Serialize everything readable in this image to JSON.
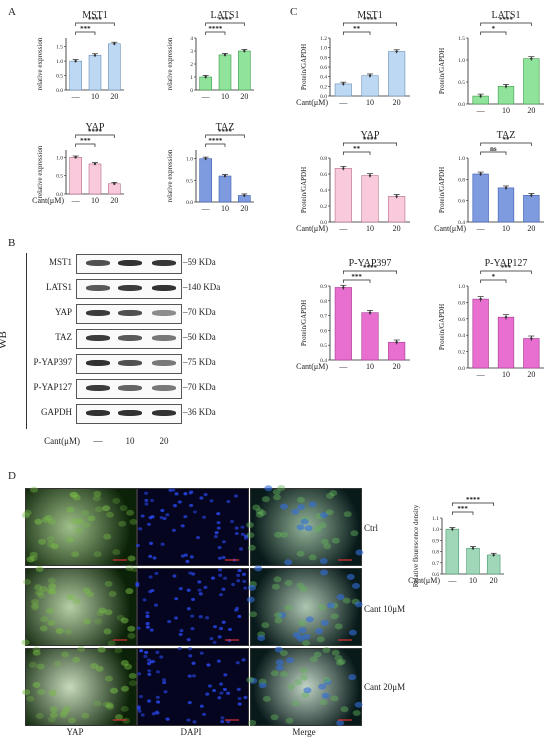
{
  "panel_letters": {
    "a": "A",
    "b": "B",
    "c": "C",
    "d": "D"
  },
  "western_blot": {
    "side_label": "WB",
    "rows": [
      {
        "protein": "MST1",
        "kda": "59 KDa",
        "intensity": [
          0.75,
          0.9,
          0.88
        ]
      },
      {
        "protein": "LATS1",
        "kda": "140 KDa",
        "intensity": [
          0.7,
          0.85,
          0.9
        ]
      },
      {
        "protein": "YAP",
        "kda": "70 KDa",
        "intensity": [
          0.85,
          0.75,
          0.45
        ]
      },
      {
        "protein": "TAZ",
        "kda": "50 KDa",
        "intensity": [
          0.85,
          0.7,
          0.55
        ]
      },
      {
        "protein": "P-YAP397",
        "kda": "75 KDa",
        "intensity": [
          0.9,
          0.75,
          0.55
        ]
      },
      {
        "protein": "P-YAP127",
        "kda": "70 KDa",
        "intensity": [
          0.85,
          0.65,
          0.55
        ]
      },
      {
        "protein": "GAPDH",
        "kda": "36 KDa",
        "intensity": [
          0.9,
          0.9,
          0.9
        ]
      }
    ],
    "treatment_label": "Cant(μM)",
    "lanes": [
      "—",
      "10",
      "20"
    ]
  },
  "microscopy": {
    "columns": [
      "YAP",
      "DAPI",
      "Merge"
    ],
    "rows": [
      "Ctrl",
      "Cant 10μM",
      "Cant 20μM"
    ]
  },
  "chart_data": [
    {
      "panel": "A",
      "type": "bar",
      "title": "MST1",
      "ylabel": "relative expression",
      "categories": [
        "—",
        "10",
        "20"
      ],
      "values": [
        1.0,
        1.2,
        1.6
      ],
      "ylim": [
        0,
        1.8
      ],
      "yticks": [
        "0.0",
        "0.5",
        "1.0",
        "1.5"
      ],
      "color": "#bcd8f3",
      "stroke": "#6b8fb5",
      "sig": [
        {
          "from": 0,
          "to": 1,
          "label": "***"
        },
        {
          "from": 0,
          "to": 2,
          "label": "****"
        }
      ],
      "treatment_label": ""
    },
    {
      "panel": "A",
      "type": "bar",
      "title": "LATS1",
      "ylabel": "relative expression",
      "categories": [
        "—",
        "10",
        "20"
      ],
      "values": [
        1.0,
        2.7,
        3.0
      ],
      "ylim": [
        0,
        4
      ],
      "yticks": [
        "0",
        "1",
        "2",
        "3",
        "4"
      ],
      "color": "#8fe39a",
      "stroke": "#3c9a49",
      "sig": [
        {
          "from": 0,
          "to": 1,
          "label": "****"
        },
        {
          "from": 0,
          "to": 2,
          "label": "****"
        }
      ],
      "treatment_label": ""
    },
    {
      "panel": "A",
      "type": "bar",
      "title": "YAP",
      "ylabel": "relative expression",
      "categories": [
        "—",
        "10",
        "20"
      ],
      "values": [
        1.0,
        0.82,
        0.28
      ],
      "ylim": [
        0,
        1.2
      ],
      "yticks": [
        "0.0",
        "0.5",
        "1.0"
      ],
      "color": "#f9c9dc",
      "stroke": "#b86b8a",
      "sig": [
        {
          "from": 0,
          "to": 1,
          "label": "***"
        },
        {
          "from": 0,
          "to": 2,
          "label": "****"
        }
      ],
      "treatment_label": "Cant(μM)"
    },
    {
      "panel": "A",
      "type": "bar",
      "title": "TAZ",
      "ylabel": "relative expression",
      "categories": [
        "—",
        "10",
        "20"
      ],
      "values": [
        1.0,
        0.6,
        0.15
      ],
      "ylim": [
        0,
        1.2
      ],
      "yticks": [
        "0.0",
        "0.5",
        "1.0"
      ],
      "color": "#7f9be0",
      "stroke": "#3c5bb0",
      "sig": [
        {
          "from": 0,
          "to": 1,
          "label": "****"
        },
        {
          "from": 0,
          "to": 2,
          "label": "****"
        }
      ],
      "treatment_label": ""
    },
    {
      "panel": "C",
      "type": "bar",
      "title": "MST1",
      "ylabel": "Protein/GAPDH",
      "categories": [
        "—",
        "10",
        "20"
      ],
      "values": [
        0.25,
        0.42,
        0.92
      ],
      "ylim": [
        0,
        1.2
      ],
      "yticks": [
        "0.0",
        "0.2",
        "0.4",
        "0.6",
        "0.8",
        "1.0",
        "1.2"
      ],
      "color": "#bcd8f3",
      "stroke": "#6b8fb5",
      "sig": [
        {
          "from": 0,
          "to": 1,
          "label": "**"
        },
        {
          "from": 0,
          "to": 2,
          "label": "****"
        }
      ],
      "treatment_label": "Cant(μM)"
    },
    {
      "panel": "C",
      "type": "bar",
      "title": "LATS1",
      "ylabel": "Protein/GAPDH",
      "categories": [
        "—",
        "10",
        "20"
      ],
      "values": [
        0.18,
        0.4,
        1.03
      ],
      "ylim": [
        0,
        1.5
      ],
      "yticks": [
        "0.0",
        "0.5",
        "1.0",
        "1.5"
      ],
      "color": "#8fe39a",
      "stroke": "#3c9a49",
      "sig": [
        {
          "from": 0,
          "to": 1,
          "label": "*"
        },
        {
          "from": 0,
          "to": 2,
          "label": "****"
        }
      ],
      "treatment_label": ""
    },
    {
      "panel": "C",
      "type": "bar",
      "title": "YAP",
      "ylabel": "Protein/GAPDH",
      "categories": [
        "—",
        "10",
        "20"
      ],
      "values": [
        0.67,
        0.58,
        0.32
      ],
      "ylim": [
        0,
        0.8
      ],
      "yticks": [
        "0.0",
        "0.2",
        "0.4",
        "0.6",
        "0.8"
      ],
      "color": "#f9c9dc",
      "stroke": "#b86b8a",
      "sig": [
        {
          "from": 0,
          "to": 1,
          "label": "**"
        },
        {
          "from": 0,
          "to": 2,
          "label": "****"
        }
      ],
      "treatment_label": "Cant(μM)"
    },
    {
      "panel": "C",
      "type": "bar",
      "title": "TAZ",
      "ylabel": "Protein/GAPDH",
      "categories": [
        "—",
        "10",
        "20"
      ],
      "values": [
        0.85,
        0.72,
        0.65
      ],
      "ylim": [
        0.4,
        1.0
      ],
      "yticks": [
        "0.4",
        "0.6",
        "0.8",
        "1.0"
      ],
      "color": "#7f9be0",
      "stroke": "#3c5bb0",
      "sig": [
        {
          "from": 0,
          "to": 1,
          "label": "ns"
        },
        {
          "from": 0,
          "to": 2,
          "label": "**"
        }
      ],
      "treatment_label": "Cant(μM)"
    },
    {
      "panel": "C",
      "type": "bar",
      "title": "P-YAP397",
      "ylabel": "Protein/GAPDH",
      "categories": [
        "—",
        "10",
        "20"
      ],
      "values": [
        0.89,
        0.72,
        0.52
      ],
      "ylim": [
        0.4,
        0.9
      ],
      "yticks": [
        "0.4",
        "0.5",
        "0.6",
        "0.7",
        "0.8",
        "0.9"
      ],
      "color": "#e86fcf",
      "stroke": "#a23b90",
      "sig": [
        {
          "from": 0,
          "to": 1,
          "label": "***"
        },
        {
          "from": 0,
          "to": 2,
          "label": "****"
        }
      ],
      "treatment_label": "Cant(μM)"
    },
    {
      "panel": "C",
      "type": "bar",
      "title": "P-YAP127",
      "ylabel": "Protein/GAPDH",
      "categories": [
        "—",
        "10",
        "20"
      ],
      "values": [
        0.84,
        0.62,
        0.36
      ],
      "ylim": [
        0,
        1.0
      ],
      "yticks": [
        "0.0",
        "0.2",
        "0.4",
        "0.6",
        "0.8",
        "1.0"
      ],
      "color": "#e86fcf",
      "stroke": "#a23b90",
      "sig": [
        {
          "from": 0,
          "to": 1,
          "label": "*"
        },
        {
          "from": 0,
          "to": 2,
          "label": "***"
        }
      ],
      "treatment_label": ""
    },
    {
      "panel": "D",
      "type": "bar",
      "title": "",
      "ylabel": "Relative flourescence density",
      "categories": [
        "—",
        "10",
        "20"
      ],
      "values": [
        1.0,
        0.83,
        0.77
      ],
      "ylim": [
        0.6,
        1.1
      ],
      "yticks": [
        "0.6",
        "0.7",
        "0.8",
        "0.9",
        "1.0",
        "1.1"
      ],
      "color": "#9fd7b8",
      "stroke": "#4a9a71",
      "sig": [
        {
          "from": 0,
          "to": 1,
          "label": "***"
        },
        {
          "from": 0,
          "to": 2,
          "label": "****"
        }
      ],
      "treatment_label": "Cant(μM)"
    }
  ]
}
